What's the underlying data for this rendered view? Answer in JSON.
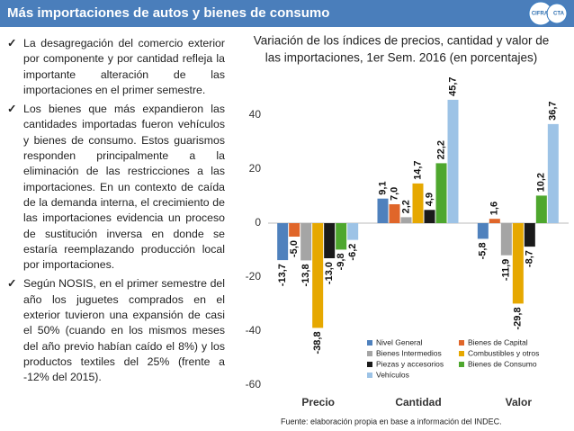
{
  "header": {
    "title": "Más importaciones de autos y bienes de consumo",
    "logo": [
      "CIFRA",
      "CTA"
    ]
  },
  "bullets": [
    "La desagregación del comercio exterior por componente y por cantidad refleja la importante alteración de las importaciones en el primer semestre.",
    "Los bienes que más expandieron las cantidades importadas fueron vehículos y bienes de consumo. Estos guarismos responden principalmente a la eliminación de las restricciones a las importaciones. En un contexto de caída de la demanda interna, el crecimiento de las importaciones evidencia un proceso de sustitución inversa en donde se estaría reemplazando producción local por importaciones.",
    "Según NOSIS, en el primer semestre del año los juguetes comprados en el exterior tuvieron una expansión de casi el 50% (cuando en los mismos meses del año previo habían caído el 8%) y los productos textiles del 25% (frente a -12% del 2015)."
  ],
  "source": "Fuente: elaboración propia en base a información del INDEC.",
  "chart_data": {
    "type": "bar",
    "title": [
      "Variación de los índices de precios, cantidad y valor de",
      "las importaciones, 1er Sem. 2016 (en porcentajes)"
    ],
    "categories": [
      "Precio",
      "Cantidad",
      "Valor"
    ],
    "series": [
      {
        "name": "Nivel General",
        "color": "#4f81bd",
        "values": [
          -13.7,
          9.1,
          -5.8
        ],
        "value_labels": [
          "-13,7",
          "9,1",
          "-5,8"
        ]
      },
      {
        "name": "Bienes de Capital",
        "color": "#e0662a",
        "values": [
          -5.0,
          7.0,
          1.6
        ],
        "value_labels": [
          "-5,0",
          "7,0",
          "1,6"
        ]
      },
      {
        "name": "Bienes Intermedios",
        "color": "#a5a5a5",
        "values": [
          -13.8,
          2.2,
          -11.9
        ],
        "value_labels": [
          "-13,8",
          "2,2",
          "-11,9"
        ]
      },
      {
        "name": "Combustibles y otros",
        "color": "#e6a800",
        "values": [
          -38.8,
          14.7,
          -29.8
        ],
        "value_labels": [
          "-38,8",
          "14,7",
          "-29,8"
        ]
      },
      {
        "name": "Piezas y accesorios",
        "color": "#1a1a1a",
        "values": [
          -13.0,
          4.9,
          -8.7
        ],
        "value_labels": [
          "-13,0",
          "4,9",
          "-8,7"
        ]
      },
      {
        "name": "Bienes de Consumo",
        "color": "#4ea72e",
        "values": [
          -9.8,
          22.2,
          10.2
        ],
        "value_labels": [
          "-9,8",
          "22,2",
          "10,2"
        ]
      },
      {
        "name": "Vehículos",
        "color": "#9dc3e6",
        "values": [
          -6.2,
          45.7,
          36.7
        ],
        "value_labels": [
          "-6,2",
          "45,7",
          "36,7"
        ]
      }
    ],
    "ylim": [
      -62,
      50
    ],
    "yticks": [
      40,
      20,
      0,
      -20,
      -40,
      -60
    ],
    "grid": false
  }
}
